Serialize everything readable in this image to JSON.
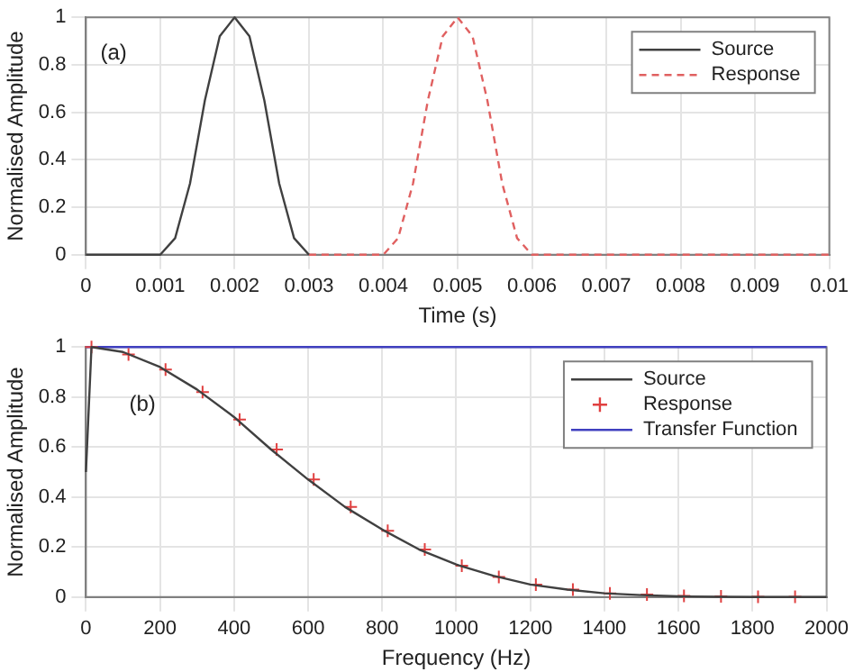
{
  "chart_data": [
    {
      "type": "line",
      "xlabel": "Time (s)",
      "ylabel": "Normalised Amplitude",
      "annotations": [
        "(a)"
      ],
      "xlim": [
        0,
        0.01
      ],
      "ylim": [
        0,
        1
      ],
      "xticks": [
        0,
        0.001,
        0.002,
        0.003,
        0.004,
        0.005,
        0.006,
        0.007,
        0.008,
        0.009,
        0.01
      ],
      "yticks": [
        0,
        0.2,
        0.4,
        0.6,
        0.8,
        1
      ],
      "grid": true,
      "legend": "top right",
      "marker": "none",
      "series": [
        {
          "name": "Source",
          "color": "#404040",
          "line_style": "solid",
          "x": [
            0,
            0.001,
            0.0012,
            0.0014,
            0.0016,
            0.0018,
            0.002,
            0.0022,
            0.0024,
            0.0026,
            0.0028,
            0.003
          ],
          "values": [
            0,
            0,
            0.07,
            0.3,
            0.65,
            0.92,
            1,
            0.92,
            0.65,
            0.3,
            0.07,
            0
          ]
        },
        {
          "name": "Response",
          "color": "#e06060",
          "line_style": "dashed",
          "x": [
            0.003,
            0.004,
            0.0042,
            0.0044,
            0.0046,
            0.0048,
            0.005,
            0.0052,
            0.0054,
            0.0056,
            0.0058,
            0.006,
            0.01
          ],
          "values": [
            0,
            0,
            0.07,
            0.3,
            0.65,
            0.92,
            1,
            0.92,
            0.65,
            0.3,
            0.07,
            0,
            0
          ]
        }
      ]
    },
    {
      "type": "line",
      "xlabel": "Frequency (Hz)",
      "ylabel": "Normalised Amplitude",
      "annotations": [
        "(b)"
      ],
      "xlim": [
        0,
        2000
      ],
      "ylim": [
        0,
        1
      ],
      "xticks": [
        0,
        200,
        400,
        600,
        800,
        1000,
        1200,
        1400,
        1600,
        1800,
        2000
      ],
      "yticks": [
        0,
        0.2,
        0.4,
        0.6,
        0.8,
        1
      ],
      "grid": true,
      "legend": "top right",
      "marker": "none",
      "series": [
        {
          "name": "Source",
          "color": "#404040",
          "line_style": "solid",
          "x": [
            0,
            15,
            100,
            200,
            300,
            400,
            500,
            600,
            700,
            800,
            900,
            1000,
            1100,
            1200,
            1300,
            1400,
            1500,
            1600,
            1700,
            1800,
            1900,
            2000
          ],
          "values": [
            0.5,
            1,
            0.98,
            0.92,
            0.83,
            0.72,
            0.59,
            0.47,
            0.36,
            0.27,
            0.19,
            0.13,
            0.085,
            0.05,
            0.03,
            0.015,
            0.008,
            0.003,
            0.001,
            0,
            0,
            0
          ]
        },
        {
          "name": "Response",
          "type": "scatter",
          "color": "#e04040",
          "marker": "cross",
          "x": [
            15,
            115,
            215,
            315,
            415,
            515,
            615,
            715,
            815,
            915,
            1015,
            1115,
            1215,
            1315,
            1415,
            1515,
            1615,
            1715,
            1815,
            1915
          ],
          "values": [
            1,
            0.97,
            0.91,
            0.82,
            0.71,
            0.59,
            0.47,
            0.36,
            0.265,
            0.19,
            0.125,
            0.08,
            0.05,
            0.03,
            0.015,
            0.01,
            0.005,
            0.003,
            0.001,
            0.001
          ]
        },
        {
          "name": "Transfer Function",
          "color": "#4040c0",
          "line_style": "solid",
          "x": [
            0,
            2000
          ],
          "values": [
            1,
            1
          ]
        }
      ]
    }
  ]
}
